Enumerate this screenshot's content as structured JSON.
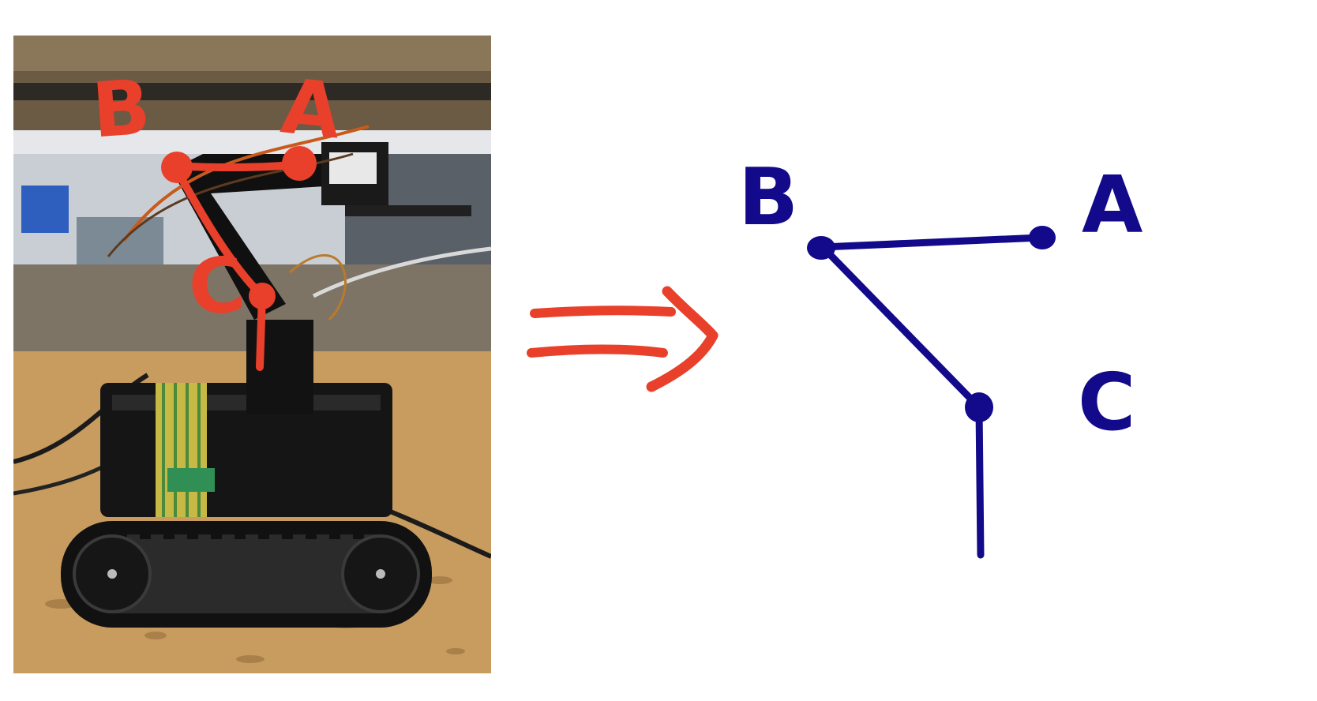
{
  "photo": {
    "subject": "tracked-robot-with-arm",
    "overlay_color": "#e8402a",
    "labels": {
      "a": "A",
      "b": "B",
      "c": "C"
    }
  },
  "arrow": {
    "icon": "double-arrow-right-icon",
    "color": "#e8402a"
  },
  "diagram": {
    "line_color": "#120a8a",
    "labels": {
      "a": "A",
      "b": "B",
      "c": "C"
    }
  }
}
